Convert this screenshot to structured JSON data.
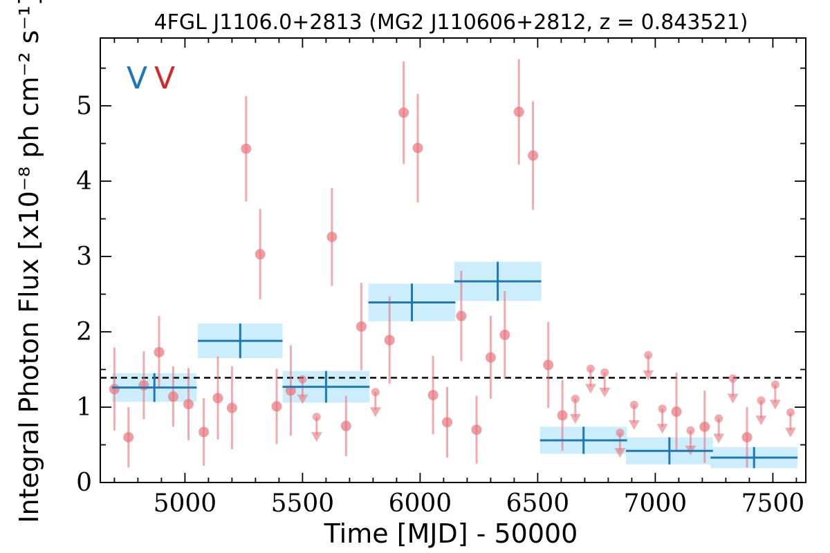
{
  "chart_data": {
    "type": "scatter",
    "title": "4FGL J1106.0+2813 (MG2 J110606+2812, z = 0.843521)",
    "xlabel": "Time [MJD] - 50000",
    "ylabel": "Integral Photon Flux [x10⁻⁸ ph cm⁻² s⁻¹]",
    "xlim": [
      4640,
      7640
    ],
    "ylim": [
      0,
      5.9
    ],
    "xticks": [
      5000,
      5500,
      6000,
      6500,
      7000,
      7500
    ],
    "yticks": [
      0,
      1,
      2,
      3,
      4,
      5
    ],
    "grid": false,
    "legend_markers": [
      {
        "text": "V",
        "color": "#1f77b4"
      },
      {
        "text": "V",
        "color": "#d62728"
      }
    ],
    "reference_line": {
      "y": 1.39,
      "style": "dashed",
      "color": "#000000"
    },
    "colors": {
      "short_bins": "#e8737a",
      "long_bins": "#1f77b4",
      "long_band": "#cceefc"
    },
    "long_bins": [
      {
        "x": 4870,
        "xerr": 180,
        "y": 1.26,
        "yerr": 0.19
      },
      {
        "x": 5235,
        "xerr": 180,
        "y": 1.88,
        "yerr": 0.23
      },
      {
        "x": 5600,
        "xerr": 185,
        "y": 1.27,
        "yerr": 0.21
      },
      {
        "x": 5965,
        "xerr": 185,
        "y": 2.39,
        "yerr": 0.25
      },
      {
        "x": 6330,
        "xerr": 185,
        "y": 2.67,
        "yerr": 0.26
      },
      {
        "x": 6695,
        "xerr": 185,
        "y": 0.56,
        "yerr": 0.18
      },
      {
        "x": 7060,
        "xerr": 185,
        "y": 0.42,
        "yerr": 0.18
      },
      {
        "x": 7420,
        "xerr": 185,
        "y": 0.33,
        "yerr": 0.14
      }
    ],
    "short_bins": [
      {
        "x": 4700,
        "y": 1.24,
        "yerr": 0.55
      },
      {
        "x": 4760,
        "y": 0.6,
        "yerr": 0.4
      },
      {
        "x": 4825,
        "y": 1.29,
        "yerr": 0.45
      },
      {
        "x": 4890,
        "y": 1.73,
        "yerr": 0.48
      },
      {
        "x": 4950,
        "y": 1.14,
        "yerr": 0.4
      },
      {
        "x": 5015,
        "y": 1.04,
        "yerr": 0.48
      },
      {
        "x": 5080,
        "y": 0.67,
        "yerr": 0.45
      },
      {
        "x": 5140,
        "y": 1.12,
        "yerr": 0.55
      },
      {
        "x": 5200,
        "y": 0.99,
        "yerr": 0.55
      },
      {
        "x": 5260,
        "y": 4.43,
        "yerr": 0.7
      },
      {
        "x": 5320,
        "y": 3.03,
        "yerr": 0.6
      },
      {
        "x": 5390,
        "y": 1.01,
        "yerr": 0.5
      },
      {
        "x": 5450,
        "y": 1.22,
        "yerr": 0.6
      },
      {
        "x": 5500,
        "y": 1.37,
        "upper_limit": true
      },
      {
        "x": 5560,
        "y": 0.87,
        "upper_limit": true
      },
      {
        "x": 5625,
        "y": 3.26,
        "yerr": 0.65
      },
      {
        "x": 5685,
        "y": 0.75,
        "yerr": 0.4
      },
      {
        "x": 5750,
        "y": 2.07,
        "yerr": 0.58
      },
      {
        "x": 5810,
        "y": 1.2,
        "upper_limit": true
      },
      {
        "x": 5870,
        "y": 1.89,
        "yerr": 0.58
      },
      {
        "x": 5930,
        "y": 4.91,
        "yerr": 0.68
      },
      {
        "x": 5990,
        "y": 4.44,
        "yerr": 0.72
      },
      {
        "x": 6055,
        "y": 1.16,
        "yerr": 0.52
      },
      {
        "x": 6115,
        "y": 0.8,
        "yerr": 0.47
      },
      {
        "x": 6175,
        "y": 2.21,
        "yerr": 0.6
      },
      {
        "x": 6240,
        "y": 0.7,
        "yerr": 0.45
      },
      {
        "x": 6300,
        "y": 1.66,
        "yerr": 0.55
      },
      {
        "x": 6360,
        "y": 1.96,
        "yerr": 0.58
      },
      {
        "x": 6420,
        "y": 4.92,
        "yerr": 0.7
      },
      {
        "x": 6480,
        "y": 4.34,
        "yerr": 0.72
      },
      {
        "x": 6545,
        "y": 1.56,
        "yerr": 0.57
      },
      {
        "x": 6605,
        "y": 0.89,
        "yerr": 0.47
      },
      {
        "x": 6660,
        "y": 1.11,
        "upper_limit": true
      },
      {
        "x": 6725,
        "y": 1.51,
        "upper_limit": true
      },
      {
        "x": 6785,
        "y": 1.46,
        "upper_limit": true
      },
      {
        "x": 6850,
        "y": 0.66,
        "upper_limit": true
      },
      {
        "x": 6910,
        "y": 1.03,
        "upper_limit": true
      },
      {
        "x": 6970,
        "y": 1.69,
        "upper_limit": true
      },
      {
        "x": 7030,
        "y": 0.98,
        "upper_limit": true
      },
      {
        "x": 7090,
        "y": 0.94,
        "yerr": 0.52
      },
      {
        "x": 7150,
        "y": 0.69,
        "upper_limit": true
      },
      {
        "x": 7210,
        "y": 0.74,
        "yerr": 0.48
      },
      {
        "x": 7270,
        "y": 0.85,
        "upper_limit": true
      },
      {
        "x": 7330,
        "y": 1.38,
        "upper_limit": true
      },
      {
        "x": 7390,
        "y": 0.6,
        "yerr": 0.4
      },
      {
        "x": 7450,
        "y": 1.09,
        "upper_limit": true
      },
      {
        "x": 7510,
        "y": 1.3,
        "upper_limit": true
      },
      {
        "x": 7575,
        "y": 0.93,
        "upper_limit": true
      }
    ]
  }
}
